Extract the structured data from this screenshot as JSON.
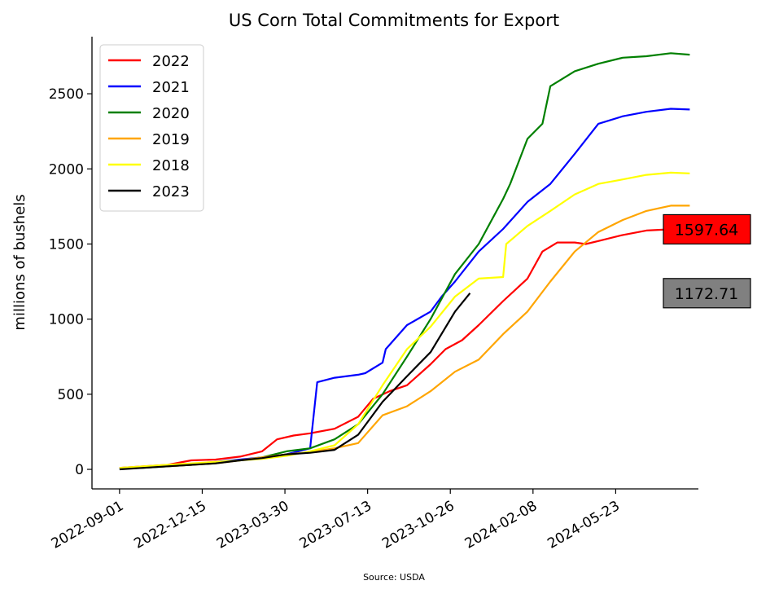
{
  "chart_data": {
    "type": "line",
    "title": "US Corn Total Commitments for Export",
    "xlabel": "",
    "ylabel": "millions of bushels",
    "source": "Source: USDA",
    "x_ticks": [
      "2022-09-01",
      "2022-12-15",
      "2023-03-30",
      "2023-07-13",
      "2023-10-26",
      "2024-02-08",
      "2024-05-23"
    ],
    "x_tick_days": [
      0,
      105,
      210,
      315,
      420,
      525,
      630
    ],
    "xlim_days": [
      -35,
      735
    ],
    "y_ticks": [
      0,
      500,
      1000,
      1500,
      2000,
      2500
    ],
    "ylim": [
      -130,
      2880
    ],
    "grid": false,
    "legend_position": "top-left",
    "series": [
      {
        "name": "2022",
        "color": "#ff0000",
        "x": [
          "2022-09-01",
          "2022-10-01",
          "2022-11-01",
          "2022-12-01",
          "2023-01-01",
          "2023-02-01",
          "2023-03-01",
          "2023-03-20",
          "2023-04-10",
          "2023-05-01",
          "2023-06-01",
          "2023-07-01",
          "2023-07-20",
          "2023-08-10",
          "2023-09-01",
          "2023-10-01",
          "2023-10-20",
          "2023-11-10",
          "2023-12-01",
          "2024-01-01",
          "2024-02-01",
          "2024-02-20",
          "2024-03-10",
          "2024-04-01",
          "2024-04-15",
          "2024-05-01",
          "2024-06-01",
          "2024-07-01",
          "2024-08-01",
          "2024-08-25"
        ],
        "y": [
          10,
          20,
          30,
          60,
          65,
          85,
          120,
          200,
          225,
          240,
          270,
          350,
          470,
          520,
          560,
          700,
          800,
          860,
          960,
          1120,
          1270,
          1450,
          1510,
          1510,
          1500,
          1520,
          1560,
          1590,
          1597.64,
          1597.64
        ]
      },
      {
        "name": "2021",
        "color": "#0000ff",
        "x": [
          "2022-09-01",
          "2022-10-01",
          "2022-11-01",
          "2022-12-01",
          "2023-01-01",
          "2023-02-01",
          "2023-03-01",
          "2023-04-01",
          "2023-05-01",
          "2023-05-10",
          "2023-06-01",
          "2023-07-01",
          "2023-07-10",
          "2023-08-01",
          "2023-08-05",
          "2023-09-01",
          "2023-10-01",
          "2023-10-15",
          "2023-11-01",
          "2023-12-01",
          "2024-01-01",
          "2024-02-01",
          "2024-03-01",
          "2024-04-01",
          "2024-05-01",
          "2024-06-01",
          "2024-07-01",
          "2024-08-01",
          "2024-08-25"
        ],
        "y": [
          5,
          15,
          25,
          35,
          50,
          65,
          80,
          100,
          140,
          580,
          610,
          630,
          640,
          710,
          800,
          960,
          1050,
          1150,
          1250,
          1450,
          1600,
          1780,
          1900,
          2100,
          2300,
          2350,
          2380,
          2400,
          2395
        ]
      },
      {
        "name": "2020",
        "color": "#008000",
        "x": [
          "2022-09-01",
          "2022-10-01",
          "2022-11-01",
          "2022-12-01",
          "2023-01-01",
          "2023-02-01",
          "2023-03-01",
          "2023-04-01",
          "2023-05-01",
          "2023-06-01",
          "2023-07-01",
          "2023-08-01",
          "2023-09-01",
          "2023-10-01",
          "2023-11-01",
          "2023-12-01",
          "2024-01-01",
          "2024-01-10",
          "2024-02-01",
          "2024-02-20",
          "2024-03-01",
          "2024-04-01",
          "2024-05-01",
          "2024-06-01",
          "2024-07-01",
          "2024-08-01",
          "2024-08-25"
        ],
        "y": [
          5,
          10,
          20,
          30,
          45,
          60,
          80,
          120,
          140,
          200,
          300,
          500,
          750,
          1000,
          1300,
          1500,
          1800,
          1900,
          2200,
          2300,
          2550,
          2650,
          2700,
          2740,
          2750,
          2770,
          2760
        ]
      },
      {
        "name": "2019",
        "color": "#ffa500",
        "x": [
          "2022-09-01",
          "2022-10-01",
          "2022-11-01",
          "2022-12-01",
          "2023-01-01",
          "2023-02-01",
          "2023-03-01",
          "2023-04-01",
          "2023-05-01",
          "2023-06-01",
          "2023-07-01",
          "2023-08-01",
          "2023-09-01",
          "2023-10-01",
          "2023-11-01",
          "2023-12-01",
          "2024-01-01",
          "2024-02-01",
          "2024-03-01",
          "2024-04-01",
          "2024-05-01",
          "2024-06-01",
          "2024-07-01",
          "2024-08-01",
          "2024-08-25"
        ],
        "y": [
          10,
          15,
          20,
          30,
          40,
          60,
          80,
          100,
          115,
          140,
          175,
          360,
          420,
          520,
          650,
          730,
          900,
          1050,
          1250,
          1450,
          1580,
          1660,
          1720,
          1755,
          1755
        ]
      },
      {
        "name": "2018",
        "color": "#ffff00",
        "x": [
          "2022-09-01",
          "2022-10-01",
          "2022-11-01",
          "2022-12-01",
          "2023-01-01",
          "2023-02-01",
          "2023-03-01",
          "2023-04-01",
          "2023-05-01",
          "2023-06-01",
          "2023-07-01",
          "2023-08-01",
          "2023-09-01",
          "2023-10-01",
          "2023-11-01",
          "2023-12-01",
          "2024-01-01",
          "2024-01-05",
          "2024-02-01",
          "2024-03-01",
          "2024-04-01",
          "2024-05-01",
          "2024-06-01",
          "2024-07-01",
          "2024-08-01",
          "2024-08-25"
        ],
        "y": [
          10,
          20,
          30,
          40,
          50,
          60,
          70,
          90,
          120,
          160,
          300,
          560,
          800,
          950,
          1150,
          1270,
          1280,
          1500,
          1620,
          1720,
          1830,
          1900,
          1930,
          1960,
          1975,
          1970
        ]
      },
      {
        "name": "2023",
        "color": "#000000",
        "x": [
          "2022-09-01",
          "2022-10-01",
          "2022-11-01",
          "2022-12-01",
          "2023-01-01",
          "2023-02-01",
          "2023-03-01",
          "2023-04-01",
          "2023-05-01",
          "2023-06-01",
          "2023-07-01",
          "2023-08-01",
          "2023-09-01",
          "2023-10-01",
          "2023-11-01",
          "2023-11-20"
        ],
        "y": [
          0,
          10,
          20,
          30,
          40,
          60,
          75,
          100,
          110,
          130,
          230,
          450,
          620,
          780,
          1050,
          1172.71
        ]
      }
    ],
    "annotations": [
      {
        "text": "1597.64",
        "y": 1597.64,
        "facecolor": "#ff0000"
      },
      {
        "text": "1172.71",
        "y": 1172.71,
        "facecolor": "#808080"
      }
    ]
  }
}
